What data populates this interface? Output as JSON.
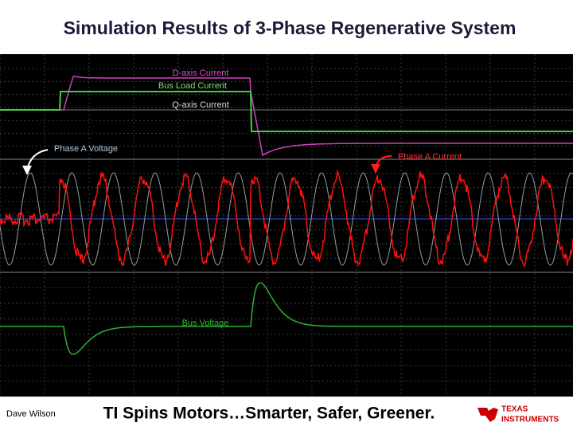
{
  "header": {
    "title": "Simulation Results of 3-Phase Regenerative System"
  },
  "annotations": {
    "d_axis": "D-axis Current",
    "bus_load": "Bus Load Current",
    "q_axis": "Q-axis Current",
    "phase_a_voltage": "Phase A Voltage",
    "phase_a_current": "Phase A Current",
    "bus_voltage": "Bus Voltage"
  },
  "footer": {
    "author": "Dave Wilson",
    "slogan": "TI Spins Motors…Smarter, Safer, Greener.",
    "logo_top": "TEXAS",
    "logo_bottom": "INSTRUMENTS"
  }
}
